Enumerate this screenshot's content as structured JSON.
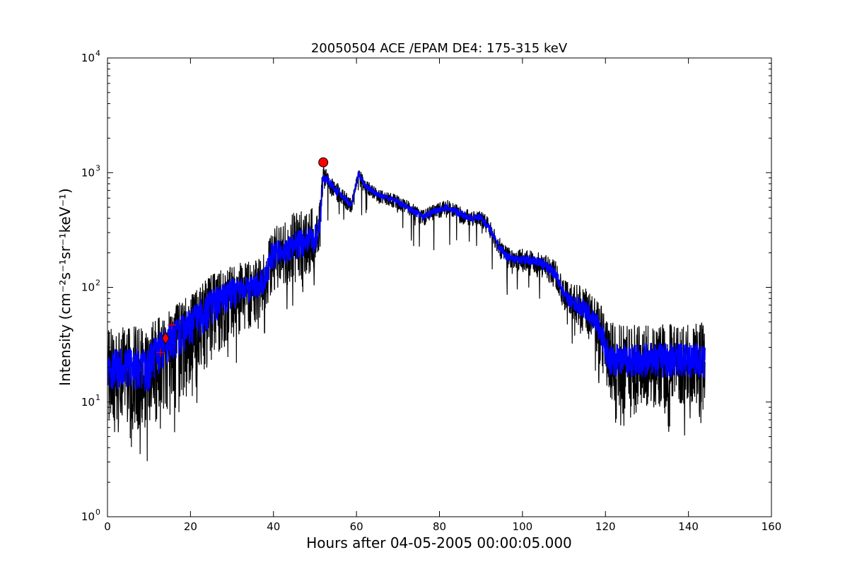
{
  "chart_data": {
    "type": "line",
    "title": "20050504 ACE /EPAM DE4: 175-315 keV",
    "xlabel": "Hours after 04-05-2005 00:00:05.000",
    "ylabel": "Intensity (cm⁻²s⁻¹sr⁻¹keV⁻¹)",
    "xlim": [
      0,
      160
    ],
    "ylim": [
      1,
      10000
    ],
    "yscale": "log",
    "grid": false,
    "legend": "none",
    "x_ticks": [
      0,
      20,
      40,
      60,
      80,
      100,
      120,
      140,
      160
    ],
    "y_tick_labels": [
      {
        "value": 1,
        "base": "10",
        "exp": "0"
      },
      {
        "value": 10,
        "base": "10",
        "exp": "1"
      },
      {
        "value": 100,
        "base": "10",
        "exp": "2"
      },
      {
        "value": 1000,
        "base": "10",
        "exp": "3"
      },
      {
        "value": 10000,
        "base": "10",
        "exp": "4"
      }
    ],
    "series_colors": {
      "raw": "#000000",
      "smoothed": "#0000ff",
      "marker": "#ff0000"
    },
    "envelope": {
      "x": [
        0,
        5,
        10,
        11,
        14,
        20,
        25,
        30,
        35,
        38,
        39.5,
        42,
        45,
        48,
        50,
        51.2,
        51.9,
        53,
        55,
        58,
        58.8,
        60.5,
        62,
        65,
        70,
        73,
        76,
        80,
        82,
        85,
        88,
        90,
        92,
        94,
        96,
        98,
        100,
        103,
        105,
        108,
        110,
        112,
        115,
        117,
        119,
        120,
        121,
        125,
        130,
        135,
        140,
        144
      ],
      "mid": [
        20,
        21,
        22,
        27,
        36,
        50,
        75,
        95,
        100,
        120,
        190,
        200,
        240,
        240,
        250,
        350,
        950,
        880,
        700,
        560,
        520,
        1000,
        780,
        650,
        560,
        480,
        410,
        480,
        500,
        440,
        400,
        410,
        330,
        240,
        190,
        175,
        175,
        170,
        160,
        130,
        85,
        75,
        65,
        55,
        40,
        30,
        24,
        24,
        24,
        24,
        24,
        24
      ],
      "hi": [
        45,
        45,
        48,
        52,
        60,
        90,
        130,
        160,
        170,
        200,
        330,
        380,
        450,
        480,
        520,
        600,
        1150,
        1050,
        850,
        650,
        580,
        1100,
        900,
        720,
        640,
        560,
        480,
        560,
        580,
        520,
        460,
        470,
        400,
        290,
        230,
        210,
        220,
        210,
        200,
        170,
        120,
        110,
        100,
        85,
        70,
        55,
        50,
        48,
        48,
        48,
        48,
        50
      ],
      "lo": [
        7,
        6,
        5,
        6,
        8,
        14,
        22,
        35,
        45,
        60,
        90,
        100,
        110,
        120,
        140,
        220,
        700,
        680,
        560,
        460,
        440,
        780,
        650,
        560,
        470,
        400,
        340,
        400,
        420,
        360,
        330,
        340,
        270,
        190,
        150,
        140,
        135,
        130,
        120,
        95,
        60,
        50,
        40,
        30,
        20,
        14,
        9,
        9,
        9,
        9,
        9,
        9
      ]
    },
    "markers": [
      {
        "shape": "circle",
        "x": 52,
        "y": 1230
      },
      {
        "shape": "diamond",
        "x": 14,
        "y": 36
      },
      {
        "shape": "plus",
        "x": 12.8,
        "y": 27
      },
      {
        "shape": "plus",
        "x": 15.5,
        "y": 47
      }
    ]
  }
}
